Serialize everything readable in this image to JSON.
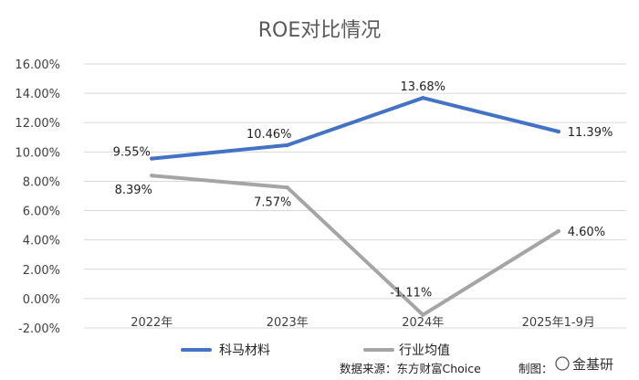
{
  "chart_data": {
    "type": "line",
    "title": "ROE对比情况",
    "categories": [
      "2022年",
      "2023年",
      "2024年",
      "2025年1-9月"
    ],
    "yticks": [
      "16.00%",
      "14.00%",
      "12.00%",
      "10.00%",
      "8.00%",
      "6.00%",
      "4.00%",
      "2.00%",
      "0.00%",
      "-2.00%"
    ],
    "ylim": [
      -2,
      16
    ],
    "grid": true,
    "legend_position": "bottom",
    "series": [
      {
        "name": "科马材料",
        "values": [
          9.55,
          10.46,
          13.68,
          11.39
        ],
        "labels": [
          "9.55%",
          "10.46%",
          "13.68%",
          "11.39%"
        ],
        "color": "#4472C4"
      },
      {
        "name": "行业均值",
        "values": [
          8.39,
          7.57,
          -1.11,
          4.6
        ],
        "labels": [
          "8.39%",
          "7.57%",
          "-1.11%",
          "4.60%"
        ],
        "color": "#A5A5A5"
      }
    ]
  },
  "footer": {
    "source": "数据来源：东方财富Choice",
    "credit": "制图：",
    "watermark": "金基研"
  }
}
